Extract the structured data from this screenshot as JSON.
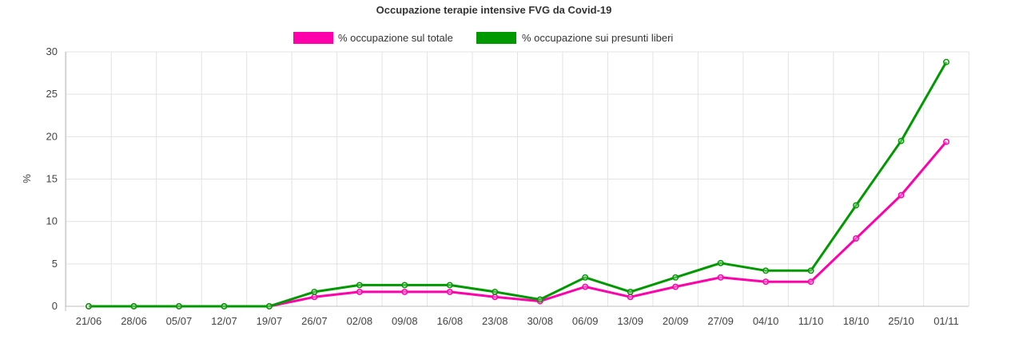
{
  "chart_data": {
    "type": "line",
    "title": "Occupazione terapie intensive FVG da Covid-19",
    "xlabel": "",
    "ylabel": "%",
    "ylim": [
      0,
      30
    ],
    "yticks": [
      "0",
      "5",
      "10",
      "15",
      "20",
      "25",
      "30"
    ],
    "categories": [
      "21/06",
      "28/06",
      "05/07",
      "12/07",
      "19/07",
      "26/07",
      "02/08",
      "09/08",
      "16/08",
      "23/08",
      "30/08",
      "06/09",
      "13/09",
      "20/09",
      "27/09",
      "04/10",
      "11/10",
      "18/10",
      "25/10",
      "01/11"
    ],
    "grid": true,
    "legend_position": "top",
    "series": [
      {
        "name": "% occupazione sul totale",
        "color": "#ff00aa",
        "values": [
          0,
          0,
          0,
          0,
          0,
          1.1,
          1.7,
          1.7,
          1.7,
          1.1,
          0.6,
          2.3,
          1.1,
          2.3,
          3.4,
          2.9,
          2.9,
          8.0,
          13.1,
          19.4
        ]
      },
      {
        "name": "% occupazione sui presunti liberi",
        "color": "#009900",
        "values": [
          0,
          0,
          0,
          0,
          0,
          1.7,
          2.5,
          2.5,
          2.5,
          1.7,
          0.8,
          3.4,
          1.7,
          3.4,
          5.1,
          4.2,
          4.2,
          11.9,
          19.5,
          28.8
        ]
      }
    ]
  }
}
